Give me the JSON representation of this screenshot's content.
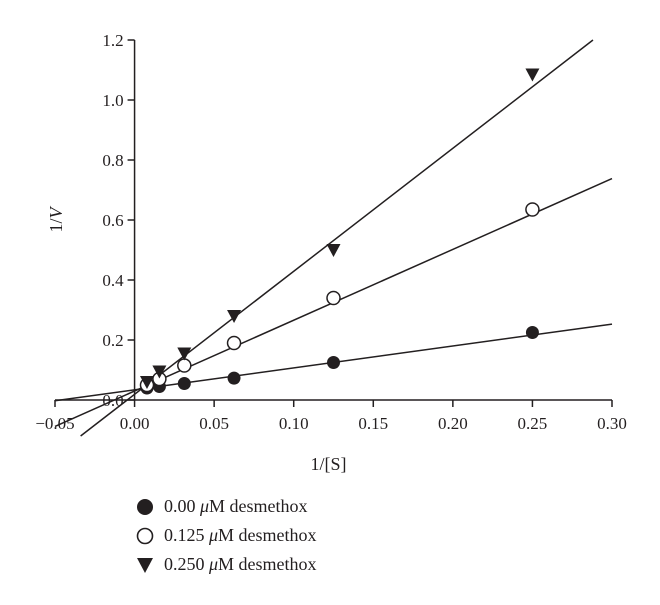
{
  "chart_data": {
    "type": "scatter",
    "title": "",
    "xlabel": "1/[S]",
    "ylabel_prefix": "1/",
    "ylabel_var": "V",
    "xlim": [
      -0.05,
      0.3
    ],
    "ylim": [
      0.0,
      1.2
    ],
    "x_ticks": [
      -0.05,
      0.0,
      0.05,
      0.1,
      0.15,
      0.2,
      0.25,
      0.3
    ],
    "x_tick_labels": [
      "−0.05",
      "0.00",
      "0.05",
      "0.10",
      "0.15",
      "0.20",
      "0.25",
      "0.30"
    ],
    "y_ticks": [
      0.0,
      0.2,
      0.4,
      0.6,
      0.8,
      1.0,
      1.2
    ],
    "y_tick_labels": [
      "0.0",
      "0.2",
      "0.4",
      "0.6",
      "0.8",
      "1.0",
      "1.2"
    ],
    "grid": false,
    "legend_position": "bottom-left, below plot",
    "series": [
      {
        "name": "0.00 μM desmethox",
        "marker": "filled-circle",
        "color": "#231f20",
        "x": [
          0.0078,
          0.0156,
          0.03125,
          0.0625,
          0.125,
          0.25
        ],
        "y": [
          0.04,
          0.045,
          0.055,
          0.073,
          0.125,
          0.225
        ],
        "fit": {
          "slope": 0.73,
          "intercept": 0.034
        }
      },
      {
        "name": "0.125 μM desmethox",
        "marker": "open-circle",
        "color": "#231f20",
        "x": [
          0.0078,
          0.0156,
          0.03125,
          0.0625,
          0.125,
          0.25
        ],
        "y": [
          0.05,
          0.07,
          0.115,
          0.19,
          0.34,
          0.635
        ],
        "fit": {
          "slope": 2.36,
          "intercept": 0.03
        }
      },
      {
        "name": "0.250 μM desmethox",
        "marker": "filled-triangle-down",
        "color": "#231f20",
        "x": [
          0.0078,
          0.0156,
          0.03125,
          0.0625,
          0.125,
          0.25
        ],
        "y": [
          0.06,
          0.095,
          0.155,
          0.28,
          0.5,
          1.085
        ],
        "fit": {
          "slope": 4.1,
          "intercept": 0.019
        }
      }
    ]
  },
  "legend": {
    "items": [
      {
        "value": "0.00",
        "unit_symbol": "μ",
        "unit_rest": "M desmethox"
      },
      {
        "value": "0.125",
        "unit_symbol": "μ",
        "unit_rest": "M desmethox"
      },
      {
        "value": "0.250",
        "unit_symbol": "μ",
        "unit_rest": "M desmethox"
      }
    ]
  }
}
